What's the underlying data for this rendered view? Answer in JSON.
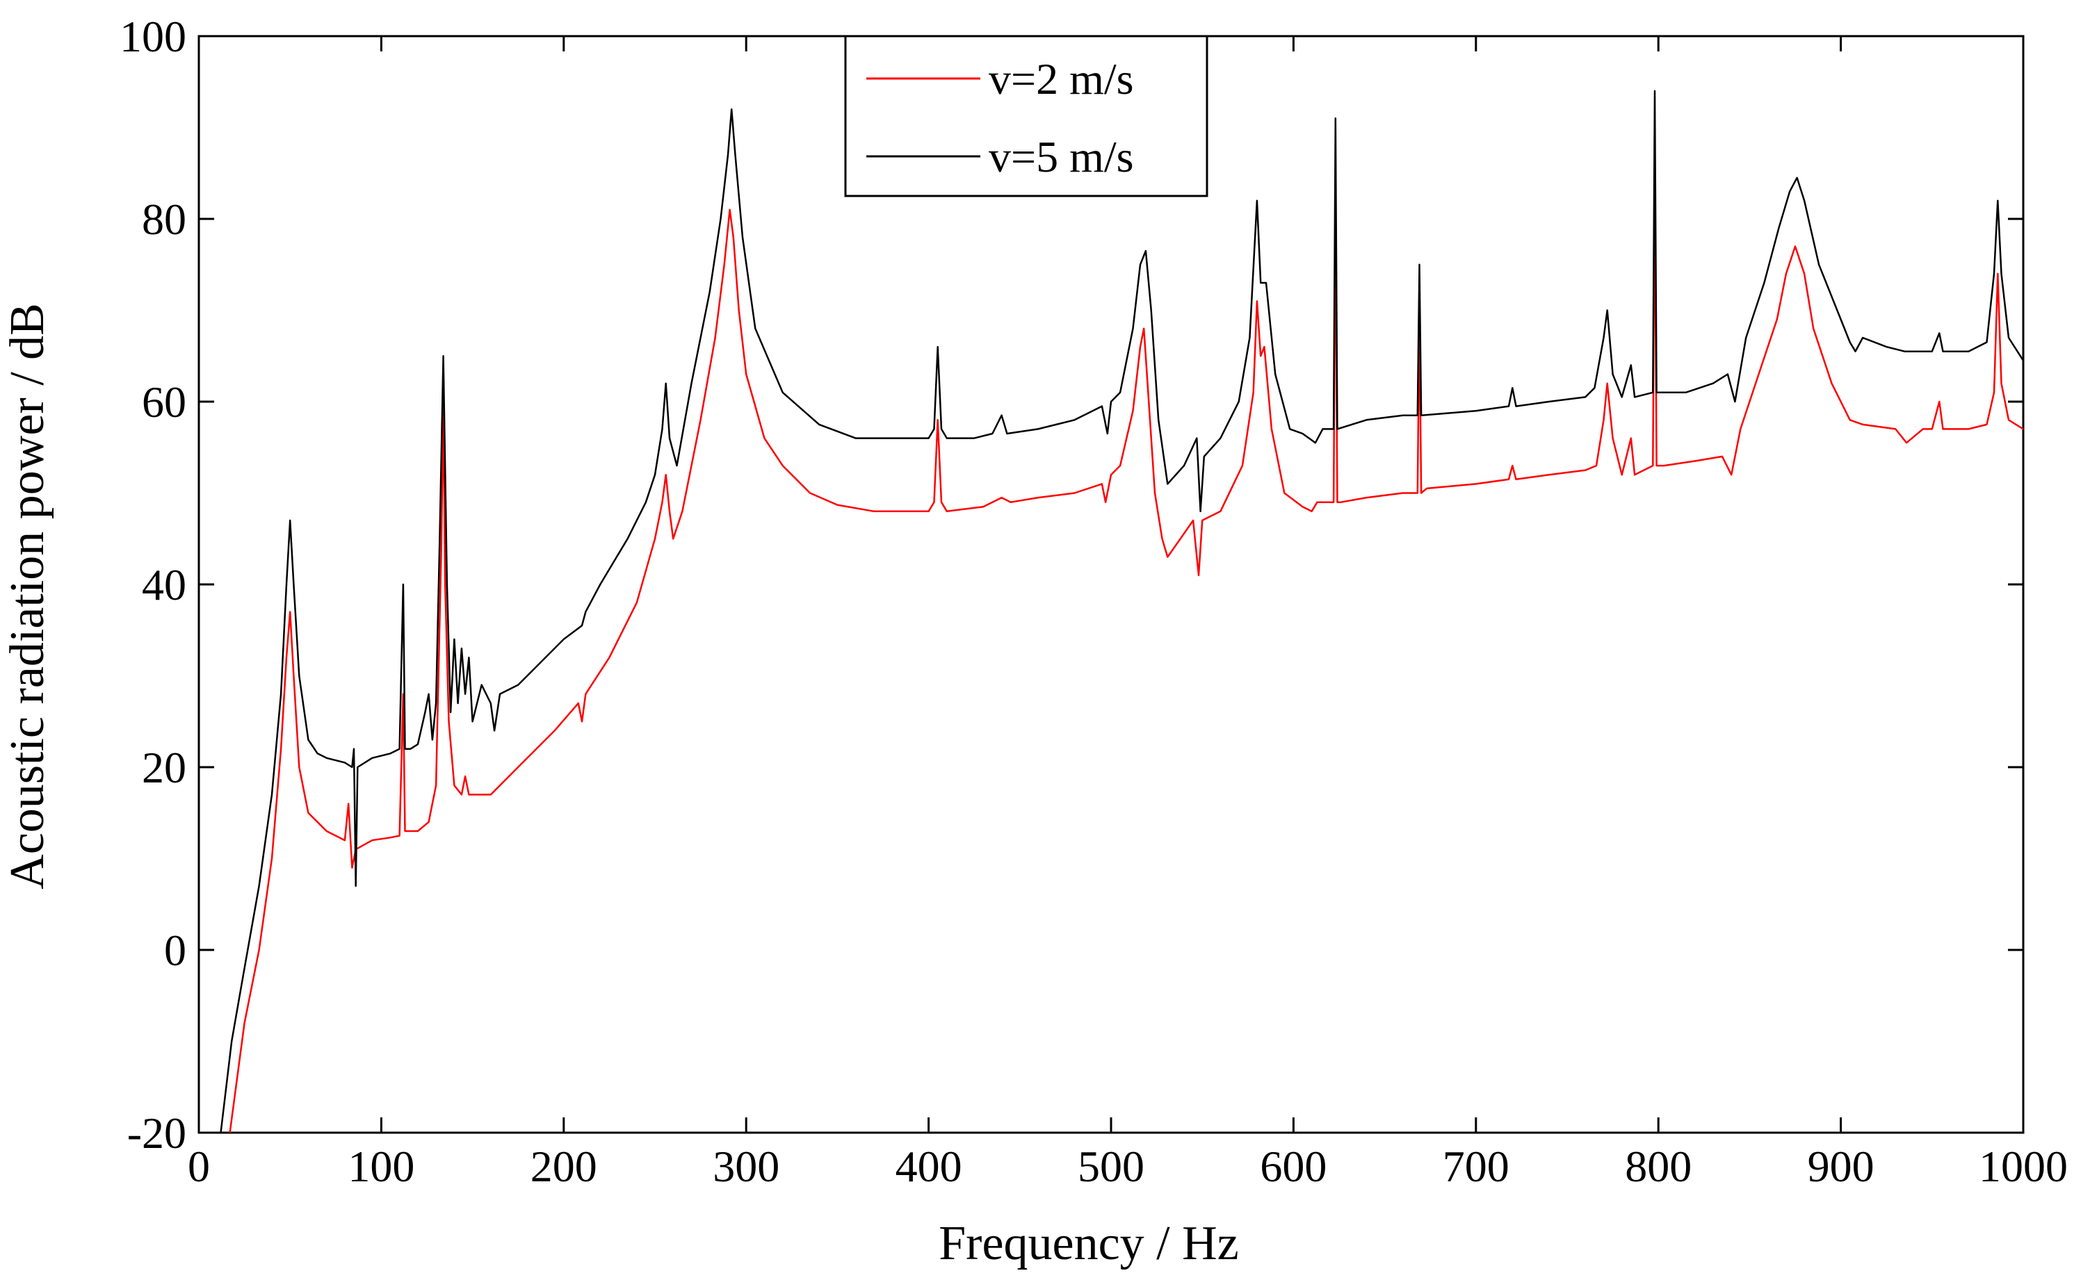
{
  "chart_data": {
    "type": "line",
    "title": "",
    "xlabel": "Frequency / Hz",
    "ylabel": "Acoustic radiation power / dB",
    "xlim": [
      0,
      1000
    ],
    "ylim": [
      -20,
      100
    ],
    "xticks": [
      0,
      100,
      200,
      300,
      400,
      500,
      600,
      700,
      800,
      900,
      1000
    ],
    "yticks": [
      -20,
      0,
      20,
      40,
      60,
      80,
      100
    ],
    "xtick_labels": [
      "0",
      "100",
      "200",
      "300",
      "400",
      "500",
      "600",
      "700",
      "800",
      "900",
      "1000"
    ],
    "ytick_labels": [
      "-20",
      "0",
      "20",
      "40",
      "60",
      "80",
      "100"
    ],
    "grid": false,
    "legend_position": "top-center",
    "series": [
      {
        "name": "v=2 m/s",
        "color": "#ff0000",
        "points": [
          [
            17,
            -20
          ],
          [
            25,
            -8
          ],
          [
            33,
            0
          ],
          [
            40,
            10
          ],
          [
            45,
            22
          ],
          [
            48,
            32
          ],
          [
            50,
            37
          ],
          [
            52,
            30
          ],
          [
            55,
            20
          ],
          [
            60,
            15
          ],
          [
            70,
            13
          ],
          [
            80,
            12
          ],
          [
            82,
            16
          ],
          [
            84,
            9
          ],
          [
            86,
            11
          ],
          [
            95,
            12
          ],
          [
            105,
            12.3
          ],
          [
            110,
            12.5
          ],
          [
            112,
            28
          ],
          [
            113,
            13
          ],
          [
            115,
            13
          ],
          [
            120,
            13
          ],
          [
            126,
            14
          ],
          [
            130,
            18
          ],
          [
            133,
            45
          ],
          [
            134,
            60
          ],
          [
            135,
            40
          ],
          [
            137,
            25
          ],
          [
            140,
            18
          ],
          [
            144,
            17
          ],
          [
            146,
            19
          ],
          [
            148,
            17
          ],
          [
            155,
            17
          ],
          [
            160,
            17
          ],
          [
            165,
            18
          ],
          [
            180,
            21
          ],
          [
            195,
            24
          ],
          [
            208,
            27
          ],
          [
            210,
            25
          ],
          [
            212,
            28
          ],
          [
            225,
            32
          ],
          [
            240,
            38
          ],
          [
            250,
            45
          ],
          [
            254,
            49
          ],
          [
            256,
            52
          ],
          [
            258,
            48
          ],
          [
            260,
            45
          ],
          [
            265,
            48
          ],
          [
            275,
            58
          ],
          [
            283,
            67
          ],
          [
            288,
            75
          ],
          [
            291,
            81
          ],
          [
            293,
            78
          ],
          [
            296,
            70
          ],
          [
            300,
            63
          ],
          [
            310,
            56
          ],
          [
            320,
            53
          ],
          [
            335,
            50
          ],
          [
            350,
            48.7
          ],
          [
            370,
            48
          ],
          [
            400,
            48
          ],
          [
            403,
            49
          ],
          [
            405,
            58
          ],
          [
            407,
            49
          ],
          [
            410,
            48
          ],
          [
            430,
            48.5
          ],
          [
            440,
            49.5
          ],
          [
            445,
            49
          ],
          [
            460,
            49.5
          ],
          [
            480,
            50
          ],
          [
            495,
            51
          ],
          [
            497,
            49
          ],
          [
            500,
            52
          ],
          [
            505,
            53
          ],
          [
            512,
            59
          ],
          [
            516,
            66
          ],
          [
            518,
            68
          ],
          [
            520,
            62
          ],
          [
            524,
            50
          ],
          [
            528,
            45
          ],
          [
            531,
            43
          ],
          [
            538,
            45
          ],
          [
            545,
            47
          ],
          [
            548,
            41
          ],
          [
            550,
            47
          ],
          [
            560,
            48
          ],
          [
            572,
            53
          ],
          [
            578,
            61
          ],
          [
            580,
            71
          ],
          [
            582,
            65
          ],
          [
            584,
            66
          ],
          [
            588,
            57
          ],
          [
            595,
            50
          ],
          [
            605,
            48.5
          ],
          [
            610,
            48
          ],
          [
            613,
            49
          ],
          [
            622,
            49
          ],
          [
            623,
            82
          ],
          [
            624,
            49
          ],
          [
            626,
            49
          ],
          [
            640,
            49.5
          ],
          [
            660,
            50
          ],
          [
            668,
            50
          ],
          [
            669,
            69
          ],
          [
            670,
            50
          ],
          [
            673,
            50.5
          ],
          [
            700,
            51
          ],
          [
            718,
            51.5
          ],
          [
            720,
            53
          ],
          [
            722,
            51.5
          ],
          [
            740,
            52
          ],
          [
            760,
            52.5
          ],
          [
            766,
            53
          ],
          [
            770,
            58
          ],
          [
            772,
            62
          ],
          [
            775,
            56
          ],
          [
            780,
            52
          ],
          [
            785,
            56
          ],
          [
            787,
            52
          ],
          [
            797,
            53
          ],
          [
            798,
            85
          ],
          [
            799,
            53
          ],
          [
            803,
            53
          ],
          [
            820,
            53.5
          ],
          [
            835,
            54
          ],
          [
            840,
            52
          ],
          [
            845,
            57
          ],
          [
            855,
            63
          ],
          [
            865,
            69
          ],
          [
            870,
            74
          ],
          [
            875,
            77
          ],
          [
            880,
            74
          ],
          [
            885,
            68
          ],
          [
            895,
            62
          ],
          [
            905,
            58
          ],
          [
            912,
            57.5
          ],
          [
            930,
            57
          ],
          [
            936,
            55.5
          ],
          [
            945,
            57
          ],
          [
            950,
            57
          ],
          [
            954,
            60
          ],
          [
            956,
            57
          ],
          [
            970,
            57
          ],
          [
            980,
            57.5
          ],
          [
            984,
            61
          ],
          [
            986,
            74
          ],
          [
            988,
            62
          ],
          [
            992,
            58
          ],
          [
            1000,
            57
          ]
        ]
      },
      {
        "name": "v=5 m/s",
        "color": "#000000",
        "points": [
          [
            12,
            -20
          ],
          [
            18,
            -10
          ],
          [
            25,
            -2
          ],
          [
            33,
            7
          ],
          [
            40,
            17
          ],
          [
            45,
            28
          ],
          [
            48,
            40
          ],
          [
            50,
            47
          ],
          [
            52,
            40
          ],
          [
            55,
            30
          ],
          [
            60,
            23
          ],
          [
            65,
            21.5
          ],
          [
            70,
            21
          ],
          [
            80,
            20.5
          ],
          [
            84,
            20
          ],
          [
            85,
            22
          ],
          [
            86,
            7
          ],
          [
            87,
            20
          ],
          [
            95,
            21
          ],
          [
            105,
            21.5
          ],
          [
            110,
            22
          ],
          [
            112,
            40
          ],
          [
            113,
            22
          ],
          [
            116,
            22
          ],
          [
            120,
            22.5
          ],
          [
            124,
            26
          ],
          [
            126,
            28
          ],
          [
            128,
            23
          ],
          [
            130,
            27
          ],
          [
            132,
            45
          ],
          [
            134,
            65
          ],
          [
            136,
            40
          ],
          [
            138,
            26
          ],
          [
            140,
            34
          ],
          [
            142,
            27
          ],
          [
            144,
            33
          ],
          [
            146,
            28
          ],
          [
            148,
            32
          ],
          [
            150,
            25
          ],
          [
            155,
            29
          ],
          [
            160,
            27
          ],
          [
            162,
            24
          ],
          [
            165,
            28
          ],
          [
            175,
            29
          ],
          [
            185,
            31
          ],
          [
            200,
            34
          ],
          [
            210,
            35.5
          ],
          [
            212,
            37
          ],
          [
            220,
            40
          ],
          [
            235,
            45
          ],
          [
            245,
            49
          ],
          [
            250,
            52
          ],
          [
            254,
            57
          ],
          [
            256,
            62
          ],
          [
            258,
            56
          ],
          [
            262,
            53
          ],
          [
            270,
            62
          ],
          [
            280,
            72
          ],
          [
            286,
            80
          ],
          [
            290,
            87
          ],
          [
            292,
            92
          ],
          [
            294,
            87
          ],
          [
            298,
            78
          ],
          [
            305,
            68
          ],
          [
            320,
            61
          ],
          [
            340,
            57.5
          ],
          [
            360,
            56
          ],
          [
            380,
            56
          ],
          [
            400,
            56
          ],
          [
            403,
            57
          ],
          [
            405,
            66
          ],
          [
            407,
            57
          ],
          [
            410,
            56
          ],
          [
            425,
            56
          ],
          [
            435,
            56.5
          ],
          [
            440,
            58.5
          ],
          [
            443,
            56.5
          ],
          [
            460,
            57
          ],
          [
            480,
            58
          ],
          [
            495,
            59.5
          ],
          [
            498,
            56.5
          ],
          [
            500,
            60
          ],
          [
            505,
            61
          ],
          [
            512,
            68
          ],
          [
            516,
            75
          ],
          [
            519,
            76.5
          ],
          [
            522,
            70
          ],
          [
            526,
            58
          ],
          [
            531,
            51
          ],
          [
            540,
            53
          ],
          [
            547,
            56
          ],
          [
            549,
            48
          ],
          [
            551,
            54
          ],
          [
            560,
            56
          ],
          [
            570,
            60
          ],
          [
            576,
            67
          ],
          [
            580,
            82
          ],
          [
            582,
            73
          ],
          [
            585,
            73
          ],
          [
            590,
            63
          ],
          [
            598,
            57
          ],
          [
            605,
            56.5
          ],
          [
            612,
            55.5
          ],
          [
            616,
            57
          ],
          [
            622,
            57
          ],
          [
            623,
            91
          ],
          [
            624,
            57
          ],
          [
            640,
            58
          ],
          [
            660,
            58.5
          ],
          [
            668,
            58.5
          ],
          [
            669,
            75
          ],
          [
            670,
            58.5
          ],
          [
            700,
            59
          ],
          [
            718,
            59.5
          ],
          [
            720,
            61.5
          ],
          [
            722,
            59.5
          ],
          [
            740,
            60
          ],
          [
            760,
            60.5
          ],
          [
            765,
            61.5
          ],
          [
            770,
            67
          ],
          [
            772,
            70
          ],
          [
            775,
            63
          ],
          [
            780,
            60.5
          ],
          [
            785,
            64
          ],
          [
            787,
            60.5
          ],
          [
            797,
            61
          ],
          [
            798,
            94
          ],
          [
            799,
            61
          ],
          [
            815,
            61
          ],
          [
            830,
            62
          ],
          [
            838,
            63
          ],
          [
            842,
            60
          ],
          [
            848,
            67
          ],
          [
            858,
            73
          ],
          [
            866,
            79
          ],
          [
            872,
            83
          ],
          [
            876,
            84.5
          ],
          [
            880,
            82
          ],
          [
            888,
            75
          ],
          [
            900,
            69
          ],
          [
            905,
            66.5
          ],
          [
            908,
            65.5
          ],
          [
            912,
            67
          ],
          [
            925,
            66
          ],
          [
            935,
            65.5
          ],
          [
            945,
            65.5
          ],
          [
            950,
            65.5
          ],
          [
            954,
            67.5
          ],
          [
            956,
            65.5
          ],
          [
            970,
            65.5
          ],
          [
            980,
            66.5
          ],
          [
            984,
            74
          ],
          [
            986,
            82
          ],
          [
            988,
            74
          ],
          [
            992,
            67
          ],
          [
            1000,
            64.5
          ]
        ]
      }
    ]
  }
}
